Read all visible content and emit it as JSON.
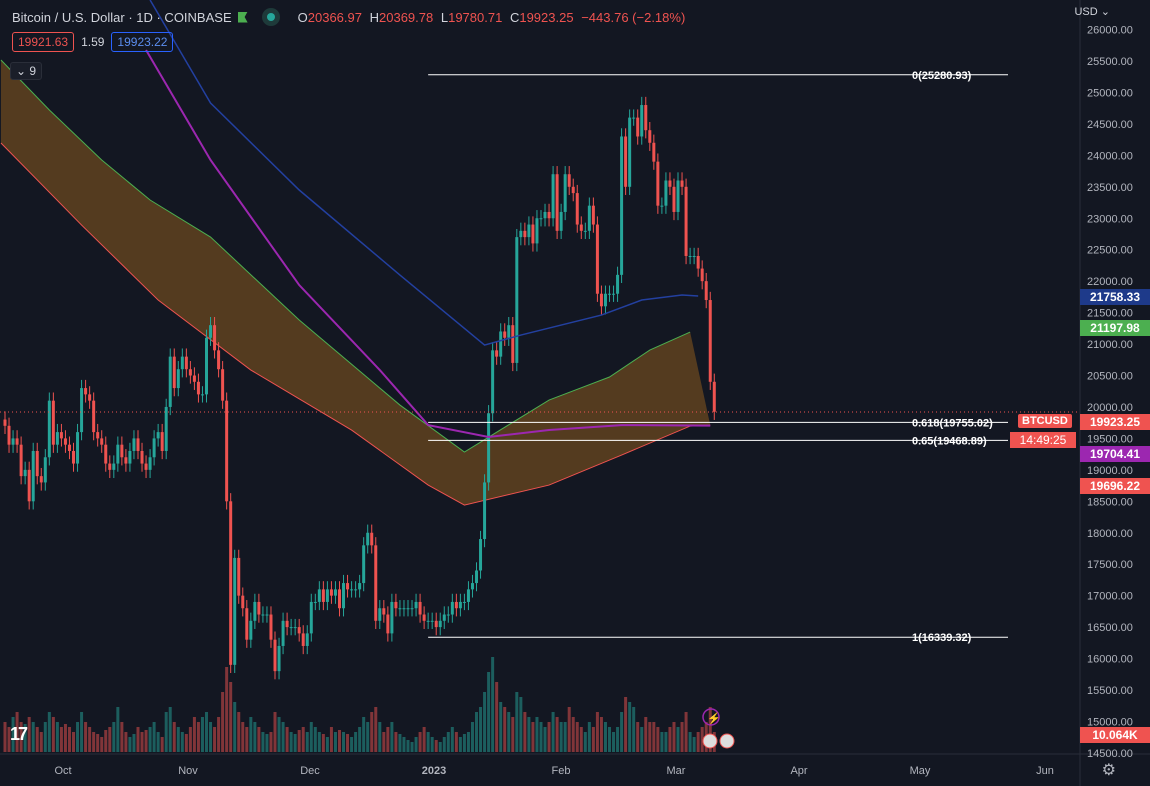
{
  "header": {
    "symbol": "Bitcoin / U.S. Dollar · 1D · COINBASE",
    "open": "20366.97",
    "high": "20369.78",
    "low": "19780.71",
    "close": "19923.25",
    "change": "−443.76 (−2.18%)",
    "o_label": "O",
    "h_label": "H",
    "l_label": "L",
    "c_label": "C"
  },
  "spread": {
    "bid": "19921.63",
    "spread": "1.59",
    "ask": "19923.22"
  },
  "indicators_toggle": "9",
  "axis": {
    "currency": "USD",
    "price_ticks": [
      "26000.00",
      "25500.00",
      "25000.00",
      "24500.00",
      "24000.00",
      "23500.00",
      "23000.00",
      "22500.00",
      "22000.00",
      "21500.00",
      "21000.00",
      "20500.00",
      "20000.00",
      "19500.00",
      "19000.00",
      "18500.00",
      "18000.00",
      "17500.00",
      "17000.00",
      "16500.00",
      "16000.00",
      "15500.00",
      "15000.00",
      "14500.00"
    ],
    "time_ticks": [
      "Oct",
      "Nov",
      "Dec",
      "2023",
      "Feb",
      "Mar",
      "Apr",
      "May",
      "Jun"
    ]
  },
  "tags": {
    "symbol": "BTCUSD",
    "last": "19923.25",
    "countdown": "14:49:25",
    "blue_ma": "21758.33",
    "green_band": "21197.98",
    "purple_ma": "19704.41",
    "red_band": "19696.22",
    "volume": "10.064K"
  },
  "colors": {
    "up": "#26a69a",
    "down": "#ef5350",
    "blue": "#1e3a8a",
    "purple": "#9c27b0",
    "green": "#4caf50",
    "red": "#ef5350",
    "fill": "#8a5a1e"
  },
  "chart_data": {
    "type": "candlestick",
    "start_date": "2022-09-15",
    "closes": [
      19700,
      19400,
      19500,
      19400,
      18900,
      19000,
      18500,
      19300,
      18900,
      18800,
      19200,
      20100,
      19400,
      19600,
      19500,
      19400,
      19300,
      19100,
      19600,
      20300,
      20200,
      20100,
      19600,
      19500,
      19400,
      19100,
      19000,
      19100,
      19400,
      19200,
      19100,
      19300,
      19500,
      19300,
      19100,
      19000,
      19200,
      19500,
      19600,
      19300,
      20000,
      20800,
      20300,
      20600,
      20800,
      20600,
      20500,
      20400,
      20200,
      20200,
      21100,
      21300,
      20900,
      20600,
      20100,
      18500,
      15900,
      17600,
      17000,
      16800,
      16300,
      16600,
      16900,
      16700,
      16700,
      16700,
      16300,
      15800,
      16200,
      16600,
      16500,
      16500,
      16500,
      16400,
      16200,
      16400,
      16900,
      16900,
      17100,
      16900,
      17100,
      17000,
      17100,
      16800,
      17200,
      17100,
      17100,
      17100,
      17200,
      17800,
      18000,
      17800,
      16600,
      16800,
      16700,
      16400,
      16900,
      16800,
      16800,
      16800,
      16800,
      16800,
      16900,
      16700,
      16600,
      16600,
      16600,
      16500,
      16600,
      16700,
      16700,
      16900,
      16800,
      16900,
      16900,
      17100,
      17200,
      17400,
      17900,
      18800,
      19900,
      20900,
      20800,
      21200,
      21100,
      21300,
      20700,
      22700,
      22800,
      22700,
      22900,
      22600,
      23000,
      23000,
      23100,
      23000,
      23700,
      22800,
      23100,
      23700,
      23500,
      23400,
      22900,
      22800,
      22800,
      23200,
      22900,
      21800,
      21600,
      21800,
      21800,
      21800,
      22100,
      24300,
      23500,
      24600,
      24600,
      24300,
      24800,
      24400,
      24200,
      23900,
      23200,
      23200,
      23600,
      23500,
      23100,
      23600,
      23500,
      22400,
      22400,
      22400,
      22200,
      22000,
      21700,
      20400,
      19923.25
    ],
    "volumes": [
      30,
      25,
      35,
      40,
      30,
      28,
      35,
      30,
      25,
      20,
      30,
      40,
      35,
      30,
      25,
      28,
      25,
      20,
      30,
      40,
      30,
      25,
      20,
      18,
      15,
      22,
      25,
      30,
      45,
      30,
      20,
      15,
      18,
      25,
      20,
      22,
      25,
      30,
      20,
      15,
      40,
      45,
      30,
      25,
      20,
      18,
      25,
      35,
      30,
      35,
      40,
      30,
      25,
      35,
      60,
      85,
      70,
      50,
      40,
      30,
      25,
      35,
      30,
      25,
      20,
      18,
      20,
      40,
      35,
      30,
      25,
      20,
      18,
      22,
      25,
      20,
      30,
      25,
      20,
      18,
      15,
      25,
      20,
      22,
      20,
      18,
      15,
      20,
      25,
      35,
      30,
      40,
      45,
      30,
      20,
      25,
      30,
      20,
      18,
      15,
      12,
      10,
      15,
      20,
      25,
      20,
      15,
      12,
      10,
      15,
      20,
      25,
      20,
      15,
      18,
      20,
      30,
      40,
      45,
      60,
      80,
      95,
      70,
      50,
      45,
      40,
      35,
      60,
      55,
      40,
      35,
      30,
      35,
      30,
      25,
      30,
      40,
      35,
      30,
      30,
      45,
      35,
      30,
      25,
      20,
      30,
      25,
      40,
      35,
      30,
      25,
      20,
      25,
      40,
      55,
      50,
      45,
      30,
      25,
      35,
      30,
      30,
      25,
      20,
      20,
      25,
      30,
      25,
      30,
      40,
      20,
      15,
      20,
      25,
      30,
      45,
      20
    ],
    "blue_ma": [
      [
        36,
        26470
      ],
      [
        51,
        24832
      ],
      [
        73,
        23449
      ],
      [
        98,
        22097
      ],
      [
        119,
        20984
      ],
      [
        128,
        21143
      ],
      [
        148,
        21461
      ],
      [
        158,
        21700
      ],
      [
        168,
        21779
      ],
      [
        172,
        21763
      ]
    ],
    "purple_ma": [
      [
        35,
        25675
      ],
      [
        51,
        23926
      ],
      [
        73,
        21938
      ],
      [
        93,
        20587
      ],
      [
        105,
        19712
      ],
      [
        120,
        19522
      ],
      [
        135,
        19633
      ],
      [
        153,
        19712
      ],
      [
        175,
        19704
      ]
    ],
    "band_upper": [
      [
        -1,
        25516
      ],
      [
        11,
        24721
      ],
      [
        24,
        23926
      ],
      [
        36,
        23290
      ],
      [
        51,
        22701
      ],
      [
        73,
        21382
      ],
      [
        98,
        20030
      ],
      [
        114,
        19283
      ],
      [
        135,
        20110
      ],
      [
        150,
        20476
      ],
      [
        160,
        20905
      ],
      [
        170,
        21191
      ]
    ],
    "band_lower": [
      [
        -1,
        24196
      ],
      [
        19,
        22892
      ],
      [
        38,
        21700
      ],
      [
        61,
        20587
      ],
      [
        86,
        19633
      ],
      [
        105,
        18758
      ],
      [
        114,
        18440
      ],
      [
        135,
        18758
      ],
      [
        153,
        19235
      ],
      [
        170,
        19696
      ],
      [
        175,
        19712
      ]
    ],
    "fib": [
      {
        "label": "0(25280.93)",
        "price": 25280.93
      },
      {
        "label": "0.618(19755.02)",
        "price": 19755.02
      },
      {
        "label": "0.65(19468.89)",
        "price": 19468.89
      },
      {
        "label": "1(16339.32)",
        "price": 16339.32
      }
    ],
    "fib_start_day": 105,
    "ylim": [
      14500,
      26000
    ]
  }
}
